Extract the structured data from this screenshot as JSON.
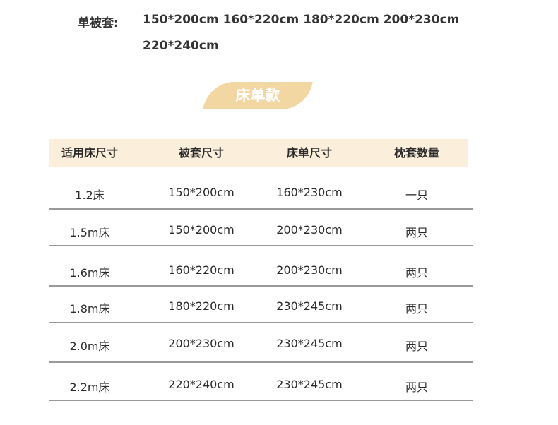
{
  "duvet_sizes": {
    "label": "单被套:",
    "line1": "150*200cm 160*220cm 180*220cm 200*230cm",
    "line2": "220*240cm"
  },
  "badge": "床单款",
  "table": {
    "headers": [
      "适用床尺寸",
      "被套尺寸",
      "床单尺寸",
      "枕套数量"
    ],
    "rows": [
      [
        "1.2床",
        "150*200cm",
        "160*230cm",
        "一只"
      ],
      [
        "1.5m床",
        "150*200cm",
        "200*230cm",
        "两只"
      ],
      [
        "1.6m床",
        "160*220cm",
        "200*230cm",
        "两只"
      ],
      [
        "1.8m床",
        "180*220cm",
        "230*245cm",
        "两只"
      ],
      [
        "2.0m床",
        "200*230cm",
        "230*245cm",
        "两只"
      ],
      [
        "2.2m床",
        "220*240cm",
        "230*245cm",
        "两只"
      ]
    ]
  },
  "colors": {
    "header_bg": "#fbefdc",
    "badge_bg": "#f2d7a2"
  }
}
